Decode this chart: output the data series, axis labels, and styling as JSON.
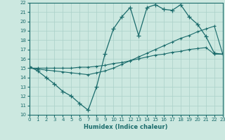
{
  "bg_color": "#cce8e0",
  "grid_color": "#aad0c8",
  "line_color": "#1a6b6b",
  "xlabel": "Humidex (Indice chaleur)",
  "xmin": 0,
  "xmax": 23,
  "ymin": 10,
  "ymax": 22,
  "line1_x": [
    0,
    1,
    2,
    3,
    4,
    5,
    6,
    7,
    8,
    9,
    10,
    11,
    12,
    13,
    14,
    15,
    16,
    17,
    18,
    19,
    20,
    21,
    22,
    23
  ],
  "line1_y": [
    15.2,
    14.7,
    14.0,
    13.3,
    12.5,
    12.0,
    11.2,
    10.5,
    13.0,
    16.5,
    19.2,
    20.5,
    21.5,
    18.5,
    21.5,
    21.8,
    21.3,
    21.2,
    21.8,
    20.5,
    19.7,
    18.4,
    16.6,
    16.5
  ],
  "line2_x": [
    0,
    1,
    2,
    3,
    4,
    5,
    6,
    7,
    8,
    9,
    10,
    11,
    12,
    13,
    14,
    15,
    16,
    17,
    18,
    19,
    20,
    21,
    22,
    23
  ],
  "line2_y": [
    15.0,
    14.9,
    14.8,
    14.7,
    14.6,
    14.5,
    14.4,
    14.3,
    14.5,
    14.7,
    15.0,
    15.4,
    15.8,
    16.2,
    16.6,
    17.0,
    17.4,
    17.8,
    18.2,
    18.5,
    18.9,
    19.2,
    19.5,
    16.5
  ],
  "line3_x": [
    0,
    1,
    2,
    3,
    4,
    5,
    6,
    7,
    8,
    9,
    10,
    11,
    12,
    13,
    14,
    15,
    16,
    17,
    18,
    19,
    20,
    21,
    22,
    23
  ],
  "line3_y": [
    15.0,
    15.0,
    15.0,
    15.0,
    15.0,
    15.0,
    15.1,
    15.1,
    15.2,
    15.3,
    15.5,
    15.6,
    15.8,
    16.0,
    16.2,
    16.4,
    16.5,
    16.7,
    16.8,
    17.0,
    17.1,
    17.2,
    16.5,
    16.5
  ]
}
